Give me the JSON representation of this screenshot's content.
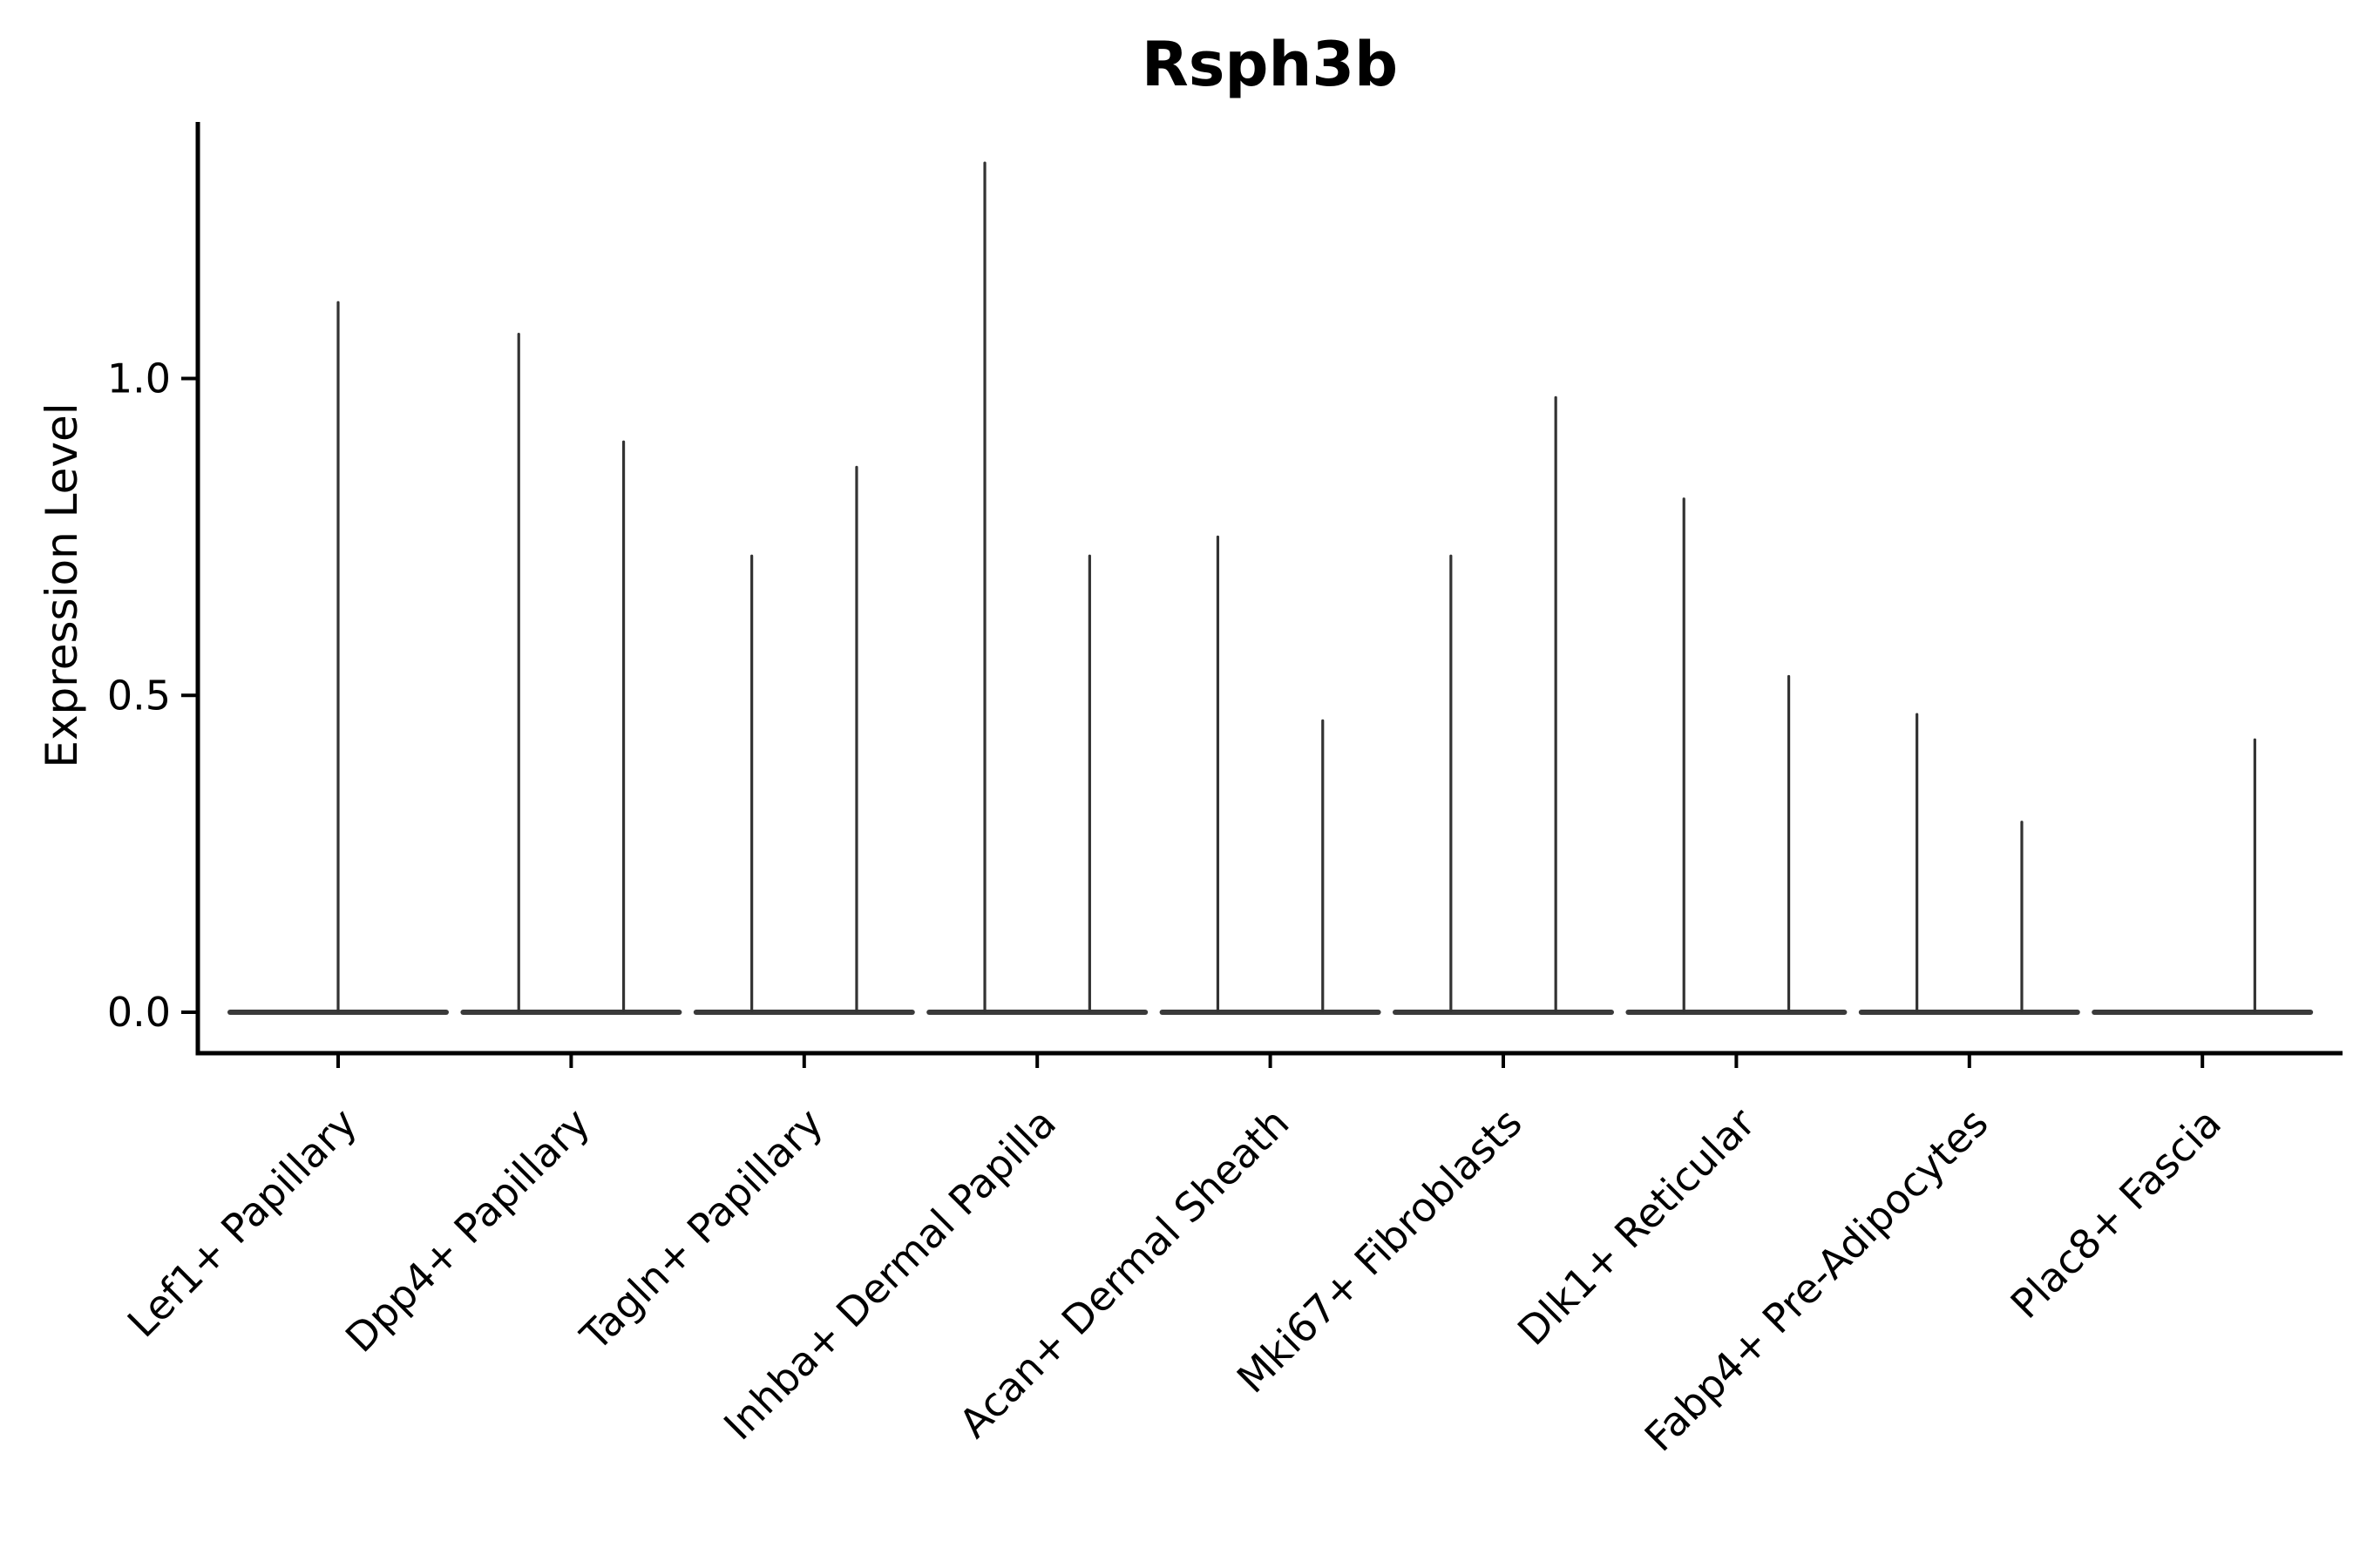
{
  "figure": {
    "background": "#ffffff"
  },
  "chart_data": {
    "type": "violin",
    "title": "Rsph3b",
    "ylabel": "Expression Level",
    "xlabel": "",
    "yticks": [
      0.0,
      0.5,
      1.0
    ],
    "ylim": [
      -0.06,
      1.4
    ],
    "grid": false,
    "legend": null,
    "line_color": "#333333",
    "baseline_color": "#3a3a3a",
    "axis_color": "#000000",
    "categories": [
      "Lef1+ Papillary",
      "Dpp4+ Papillary",
      "Tagln+ Papillary",
      "Inhba+ Dermal Papilla",
      "Acan+ Dermal Sheath",
      "Mki67+ Fibroblasts",
      "Dlk1+ Reticular",
      "Fabp4+ Pre-Adipocytes",
      "Plac8+ Fascia"
    ],
    "violins": [
      {
        "category": "Lef1+ Papillary",
        "spikes": [
          {
            "pos": 0,
            "max": 1.12
          }
        ]
      },
      {
        "category": "Dpp4+ Papillary",
        "spikes": [
          {
            "pos": -0.225,
            "max": 1.07
          },
          {
            "pos": 0.225,
            "max": 0.9
          }
        ]
      },
      {
        "category": "Tagln+ Papillary",
        "spikes": [
          {
            "pos": -0.225,
            "max": 0.72
          },
          {
            "pos": 0.225,
            "max": 0.86
          }
        ]
      },
      {
        "category": "Inhba+ Dermal Papilla",
        "spikes": [
          {
            "pos": -0.225,
            "max": 1.34
          },
          {
            "pos": 0.225,
            "max": 0.72
          }
        ]
      },
      {
        "category": "Acan+ Dermal Sheath",
        "spikes": [
          {
            "pos": -0.225,
            "max": 0.75
          },
          {
            "pos": 0.225,
            "max": 0.46
          }
        ]
      },
      {
        "category": "Mki67+ Fibroblasts",
        "spikes": [
          {
            "pos": -0.225,
            "max": 0.72
          },
          {
            "pos": 0.225,
            "max": 0.97
          }
        ]
      },
      {
        "category": "Dlk1+ Reticular",
        "spikes": [
          {
            "pos": -0.225,
            "max": 0.81
          },
          {
            "pos": 0.225,
            "max": 0.53
          }
        ]
      },
      {
        "category": "Fabp4+ Pre-Adipocytes",
        "spikes": [
          {
            "pos": -0.225,
            "max": 0.47
          },
          {
            "pos": 0.225,
            "max": 0.3
          }
        ]
      },
      {
        "category": "Plac8+ Fascia",
        "spikes": [
          {
            "pos": 0.225,
            "max": 0.43
          }
        ]
      }
    ]
  }
}
